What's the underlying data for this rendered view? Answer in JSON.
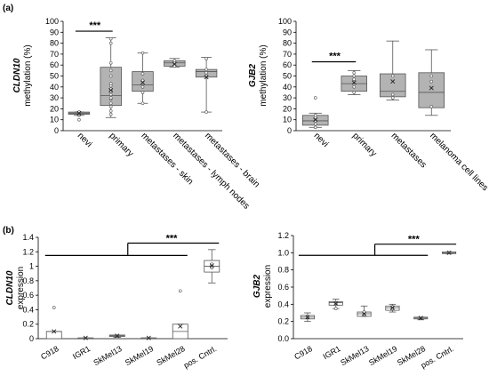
{
  "panels": [
    {
      "label": "(a)"
    },
    {
      "label": "(b)"
    }
  ],
  "chart_data": [
    {
      "type": "box",
      "gene": "CLDN10",
      "ylabel": "methylation (%)",
      "ylim": [
        0,
        100
      ],
      "yticks": [
        "0",
        "10",
        "20",
        "30",
        "40",
        "50",
        "60",
        "70",
        "80",
        "90",
        "100"
      ],
      "categories": [
        "nevi",
        "primary",
        "metastases - skin",
        "metastases - lymph nodes",
        "metastases - brain"
      ],
      "boxes": [
        {
          "min": 14,
          "q1": 15,
          "median": 16,
          "q3": 17,
          "max": 17,
          "mean": 16,
          "points": [
            10,
            14,
            15,
            16,
            17
          ]
        },
        {
          "min": 12,
          "q1": 23,
          "median": 32,
          "q3": 58,
          "max": 85,
          "mean": 37,
          "points": [
            15,
            18,
            22,
            25,
            29,
            30,
            33,
            36,
            38,
            41,
            43,
            50,
            55,
            62,
            80,
            84
          ]
        },
        {
          "min": 25,
          "q1": 36,
          "median": 42,
          "q3": 54,
          "max": 71,
          "mean": 44,
          "points": [
            25,
            35,
            40,
            46,
            52,
            71
          ]
        },
        {
          "min": 58,
          "q1": 59,
          "median": 62,
          "q3": 64,
          "max": 66,
          "mean": 61,
          "points": [
            59,
            62,
            64
          ]
        },
        {
          "min": 17,
          "q1": 49,
          "median": 54,
          "q3": 56,
          "max": 67,
          "mean": 49,
          "points": [
            17,
            50,
            53,
            56,
            66
          ]
        }
      ],
      "significance": {
        "from": 0,
        "to": 1,
        "label": "***"
      }
    },
    {
      "type": "box",
      "gene": "GJB2",
      "ylabel": "methylation (%)",
      "ylim": [
        0,
        100
      ],
      "yticks": [
        "0",
        "10",
        "20",
        "30",
        "40",
        "50",
        "60",
        "70",
        "80",
        "90",
        "100"
      ],
      "categories": [
        "nevi",
        "primary",
        "metastases",
        "melanoma cell lines"
      ],
      "boxes": [
        {
          "min": 3,
          "q1": 5,
          "median": 9,
          "q3": 14,
          "max": 16,
          "mean": 10,
          "points": [
            3,
            6,
            9,
            12,
            14,
            30
          ]
        },
        {
          "min": 33,
          "q1": 36,
          "median": 43,
          "q3": 50,
          "max": 55,
          "mean": 44,
          "points": [
            35,
            40,
            47,
            50,
            53
          ]
        },
        {
          "min": 28,
          "q1": 31,
          "median": 36,
          "q3": 52,
          "max": 82,
          "mean": 45,
          "points": [
            30,
            33,
            50
          ]
        },
        {
          "min": 14,
          "q1": 21,
          "median": 35,
          "q3": 53,
          "max": 74,
          "mean": 39,
          "points": [
            22,
            45,
            50
          ]
        }
      ],
      "significance": {
        "from": 0,
        "to": 1,
        "label": "***"
      }
    },
    {
      "type": "box",
      "gene": "CLDN10",
      "ylabel": "expression",
      "ylim": [
        0,
        1.4
      ],
      "yticks": [
        "0",
        "0.2",
        "0.4",
        "0.6",
        "0.8",
        "1",
        "1.2",
        "1.4"
      ],
      "categories": [
        "C918",
        "IGR1",
        "SkMel13",
        "SkMel19",
        "SkMel28",
        "pos. Cntrl."
      ],
      "boxes": [
        {
          "min": 0.0,
          "q1": 0.0,
          "median": 0.1,
          "q3": 0.1,
          "max": 0.1,
          "mean": 0.1,
          "points": [
            0.43
          ]
        },
        {
          "min": 0.0,
          "q1": 0.0,
          "median": 0.01,
          "q3": 0.01,
          "max": 0.01,
          "mean": 0.01,
          "points": []
        },
        {
          "min": 0.02,
          "q1": 0.03,
          "median": 0.04,
          "q3": 0.05,
          "max": 0.05,
          "mean": 0.04,
          "points": []
        },
        {
          "min": 0.0,
          "q1": 0.0,
          "median": 0.01,
          "q3": 0.01,
          "max": 0.01,
          "mean": 0.01,
          "points": []
        },
        {
          "min": 0.0,
          "q1": 0.0,
          "median": 0.1,
          "q3": 0.2,
          "max": 0.2,
          "mean": 0.17,
          "points": [
            0.66
          ]
        },
        {
          "min": 0.77,
          "q1": 0.92,
          "median": 1.0,
          "q3": 1.08,
          "max": 1.23,
          "mean": 1.01,
          "points": [
            0.98,
            1.01,
            1.03
          ]
        }
      ],
      "significance": {
        "from": 0,
        "to": 4,
        "target": 5,
        "label": "***"
      }
    },
    {
      "type": "box",
      "gene": "GJB2",
      "ylabel": "expression",
      "ylim": [
        0,
        1.2
      ],
      "yticks": [
        "0.0",
        "0.2",
        "0.4",
        "0.6",
        "0.8",
        "1.0",
        "1.2"
      ],
      "categories": [
        "C918",
        "IGR1",
        "SkMel13",
        "SkMel19",
        "SkMel28",
        "pos. Cntrl."
      ],
      "boxes": [
        {
          "min": 0.2,
          "q1": 0.23,
          "median": 0.25,
          "q3": 0.27,
          "max": 0.3,
          "mean": 0.25,
          "points": [
            0.25
          ]
        },
        {
          "min": 0.35,
          "q1": 0.39,
          "median": 0.42,
          "q3": 0.43,
          "max": 0.46,
          "mean": 0.41,
          "points": [
            0.35,
            0.41
          ]
        },
        {
          "min": 0.26,
          "q1": 0.26,
          "median": 0.29,
          "q3": 0.31,
          "max": 0.38,
          "mean": 0.29,
          "points": [
            0.28,
            0.31
          ]
        },
        {
          "min": 0.31,
          "q1": 0.33,
          "median": 0.36,
          "q3": 0.38,
          "max": 0.4,
          "mean": 0.36,
          "points": [
            0.35,
            0.37
          ]
        },
        {
          "min": 0.22,
          "q1": 0.23,
          "median": 0.24,
          "q3": 0.25,
          "max": 0.25,
          "mean": 0.24,
          "points": []
        },
        {
          "min": 0.99,
          "q1": 0.99,
          "median": 1.0,
          "q3": 1.01,
          "max": 1.01,
          "mean": 1.0,
          "points": [
            1.0
          ]
        }
      ],
      "significance": {
        "from": 0,
        "to": 4,
        "target": 5,
        "label": "***"
      }
    }
  ]
}
